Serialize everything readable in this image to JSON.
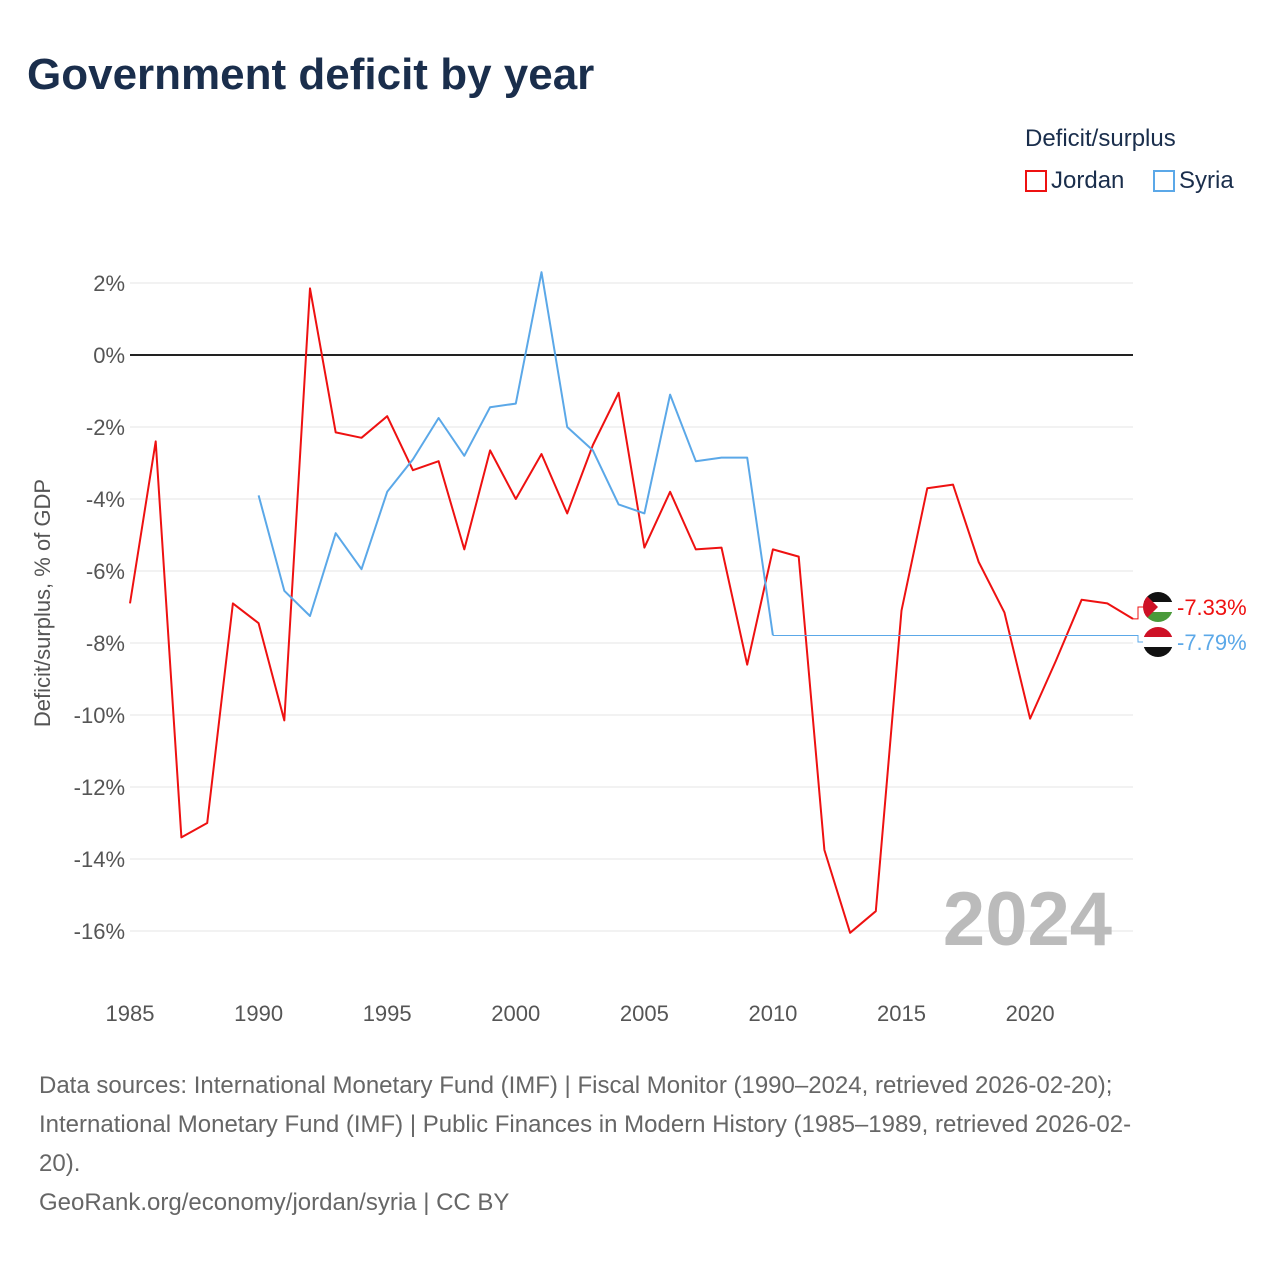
{
  "title": "Government deficit by year",
  "legend": {
    "title": "Deficit/surplus",
    "items": [
      {
        "label": "Jordan",
        "color": "#ee1111"
      },
      {
        "label": "Syria",
        "color": "#5ba8e8"
      }
    ]
  },
  "footer": {
    "line1": "Data sources: International Monetary Fund (IMF) | Fiscal Monitor (1990–2024, retrieved 2026-02-20);",
    "line2": "International Monetary Fund (IMF) | Public Finances in Modern History (1985–1989, retrieved 2026-02-",
    "line3": "20).",
    "line4": "GeoRank.org/economy/jordan/syria | CC BY"
  },
  "chart_data": {
    "type": "line",
    "title": "Government deficit by year",
    "ylabel": "Deficit/surplus, % of GDP",
    "xlabel": "",
    "xlim": [
      1985,
      2024
    ],
    "ylim": [
      -16,
      2
    ],
    "yticks": [
      2,
      0,
      -2,
      -4,
      -6,
      -8,
      -10,
      -12,
      -14,
      -16
    ],
    "ytick_labels": [
      "2%",
      "0%",
      "-2%",
      "-4%",
      "-6%",
      "-8%",
      "-10%",
      "-12%",
      "-14%",
      "-16%"
    ],
    "xticks": [
      1985,
      1990,
      1995,
      2000,
      2005,
      2010,
      2015,
      2020
    ],
    "watermark": "2024",
    "series": [
      {
        "name": "Jordan",
        "color": "#ee1111",
        "end_label": "-7.33%",
        "x": [
          1985,
          1986,
          1987,
          1988,
          1989,
          1990,
          1991,
          1992,
          1993,
          1994,
          1995,
          1996,
          1997,
          1998,
          1999,
          2000,
          2001,
          2002,
          2003,
          2004,
          2005,
          2006,
          2007,
          2008,
          2009,
          2010,
          2011,
          2012,
          2013,
          2014,
          2015,
          2016,
          2017,
          2018,
          2019,
          2020,
          2021,
          2022,
          2023,
          2024
        ],
        "values": [
          -6.9,
          -2.4,
          -13.4,
          -13.0,
          -6.9,
          -7.45,
          -10.15,
          1.85,
          -2.15,
          -2.3,
          -1.7,
          -3.2,
          -2.95,
          -5.4,
          -2.65,
          -4.0,
          -2.75,
          -4.4,
          -2.5,
          -1.05,
          -5.35,
          -3.8,
          -5.4,
          -5.35,
          -8.6,
          -5.4,
          -5.6,
          -13.75,
          -16.05,
          -15.45,
          -7.1,
          -3.7,
          -3.6,
          -5.75,
          -7.15,
          -10.1,
          -8.5,
          -6.8,
          -6.9,
          -7.33
        ]
      },
      {
        "name": "Syria",
        "color": "#5ba8e8",
        "end_label": "-7.79%",
        "x": [
          1990,
          1991,
          1992,
          1993,
          1994,
          1995,
          1996,
          1997,
          1998,
          1999,
          2000,
          2001,
          2002,
          2003,
          2004,
          2005,
          2006,
          2007,
          2008,
          2009,
          2010
        ],
        "values": [
          -3.9,
          -6.55,
          -7.25,
          -4.95,
          -5.95,
          -3.8,
          -2.9,
          -1.75,
          -2.8,
          -1.45,
          -1.35,
          2.3,
          -2.0,
          -2.65,
          -4.15,
          -4.4,
          -1.1,
          -2.95,
          -2.85,
          -2.85,
          -7.79
        ]
      }
    ]
  }
}
